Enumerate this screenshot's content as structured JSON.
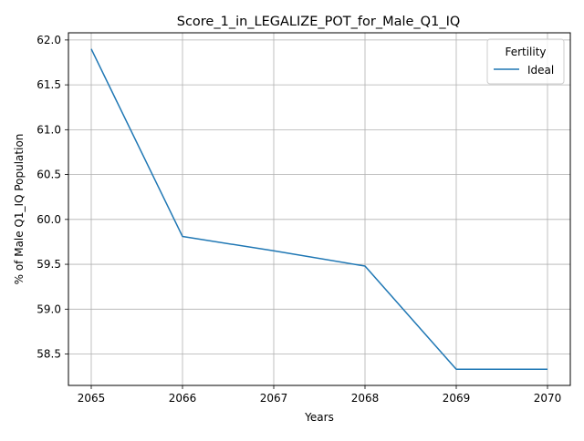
{
  "chart_data": {
    "type": "line",
    "title": "Score_1_in_LEGALIZE_POT_for_Male_Q1_IQ",
    "xlabel": "Years",
    "ylabel": "% of Male Q1_IQ Population",
    "x": [
      2065,
      2066,
      2067,
      2068,
      2069,
      2070
    ],
    "x_ticks": [
      "2065",
      "2066",
      "2067",
      "2068",
      "2069",
      "2070"
    ],
    "y_ticks": [
      "58.5",
      "59.0",
      "59.5",
      "60.0",
      "60.5",
      "61.0",
      "61.5",
      "62.0"
    ],
    "y_tick_values": [
      58.5,
      59.0,
      59.5,
      60.0,
      60.5,
      61.0,
      61.5,
      62.0
    ],
    "xlim": [
      2064.75,
      2070.25
    ],
    "ylim": [
      58.15,
      62.08
    ],
    "grid": true,
    "legend": {
      "title": "Fertility",
      "placement": "top-right"
    },
    "series": [
      {
        "name": "Ideal",
        "color": "#1f77b4",
        "values": [
          61.9,
          59.81,
          59.65,
          59.48,
          58.33,
          58.33
        ]
      }
    ]
  },
  "colors": {
    "grid": "#b0b0b0",
    "axis": "#000000",
    "legend_border": "#cccccc"
  }
}
